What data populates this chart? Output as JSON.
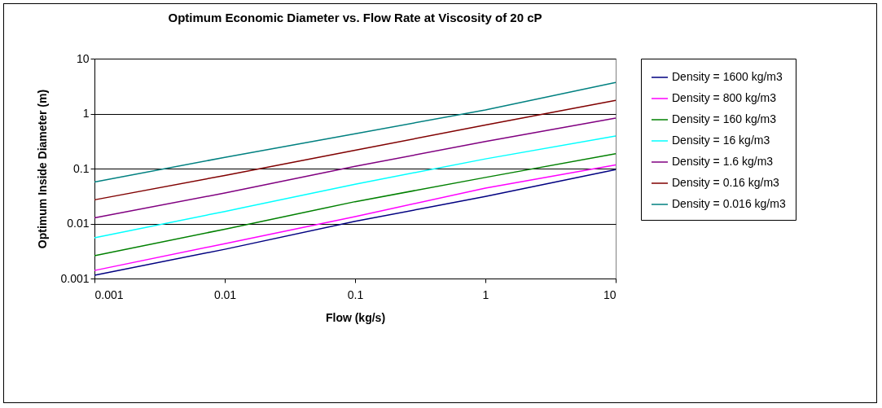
{
  "chart_data": {
    "type": "line",
    "title": "Optimum Economic Diameter vs. Flow Rate at Viscosity of 20 cP",
    "xlabel": "Flow (kg/s)",
    "ylabel": "Optimum Inside Diameter (m)",
    "x": [
      0.001,
      0.01,
      0.1,
      1,
      10
    ],
    "series": [
      {
        "name": "Density = 1600 kg/m3",
        "color": "#000080",
        "values": [
          0.00115,
          0.0034,
          0.011,
          0.031,
          0.096
        ]
      },
      {
        "name": "Density = 800 kg/m3",
        "color": "#ff00ff",
        "values": [
          0.0014,
          0.0043,
          0.0134,
          0.044,
          0.117
        ]
      },
      {
        "name": "Density = 160 kg/m3",
        "color": "#008000",
        "values": [
          0.0026,
          0.0079,
          0.025,
          0.069,
          0.186
        ]
      },
      {
        "name": "Density = 16 kg/m3",
        "color": "#00ffff",
        "values": [
          0.0055,
          0.0166,
          0.052,
          0.15,
          0.39
        ]
      },
      {
        "name": "Density = 1.6 kg/m3",
        "color": "#800080",
        "values": [
          0.0127,
          0.036,
          0.11,
          0.31,
          0.83
        ]
      },
      {
        "name": "Density = 0.16 kg/m3",
        "color": "#800000",
        "values": [
          0.027,
          0.075,
          0.215,
          0.62,
          1.74
        ]
      },
      {
        "name": "Density = 0.016 kg/m3",
        "color": "#008080",
        "values": [
          0.057,
          0.16,
          0.43,
          1.17,
          3.7
        ]
      }
    ],
    "xlim": [
      0.001,
      10
    ],
    "xticks": [
      0.001,
      0.01,
      0.1,
      1,
      10
    ],
    "ylim": [
      0.001,
      10
    ],
    "yticks": [
      0.001,
      0.01,
      0.1,
      1,
      10
    ],
    "log": "xy",
    "grid": "y",
    "legend": "right",
    "marker": "none",
    "line_style": "solid"
  }
}
